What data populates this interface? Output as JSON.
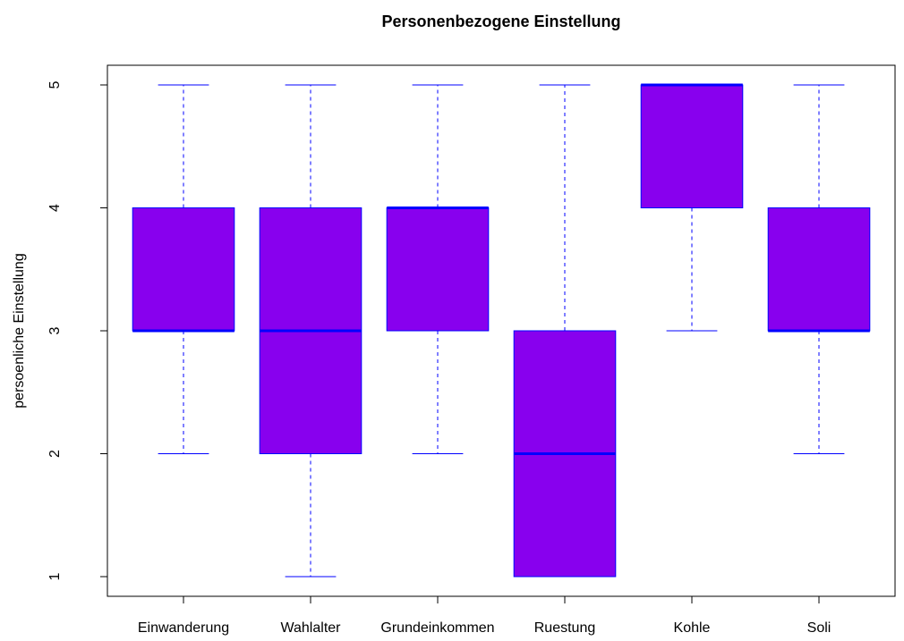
{
  "chart_data": {
    "type": "boxplot",
    "title": "Personenbezogene Einstellung",
    "y_label": "persoenliche Einstellung",
    "categories": [
      "Einwanderung",
      "Wahlalter",
      "Grundeinkommen",
      "Ruestung",
      "Kohle",
      "Soli"
    ],
    "boxes": [
      {
        "min": 2,
        "q1": 3,
        "median": 3,
        "q3": 4,
        "max": 5
      },
      {
        "min": 1,
        "q1": 2,
        "median": 3,
        "q3": 4,
        "max": 5
      },
      {
        "min": 2,
        "q1": 3,
        "median": 4,
        "q3": 4,
        "max": 5
      },
      {
        "min": 1,
        "q1": 1,
        "median": 2,
        "q3": 3,
        "max": 5
      },
      {
        "min": 3,
        "q1": 4,
        "median": 5,
        "q3": 5,
        "max": 5
      },
      {
        "min": 2,
        "q1": 3,
        "median": 3,
        "q3": 4,
        "max": 5
      }
    ],
    "color": "#8800ee",
    "line_color": "#0000ff",
    "ylim": [
      0.84,
      5.16
    ],
    "yticks": [
      1,
      2,
      3,
      4,
      5
    ]
  }
}
